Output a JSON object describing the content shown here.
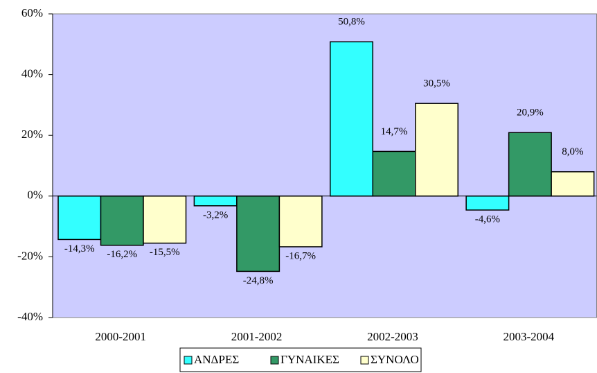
{
  "chart_data": {
    "type": "bar",
    "categories": [
      "2000-2001",
      "2001-2002",
      "2002-2003",
      "2003-2004"
    ],
    "series": [
      {
        "name": "ΑΝΔΡΕΣ",
        "color": "#33ffff",
        "values": [
          -14.3,
          -3.2,
          50.8,
          -4.6
        ],
        "value_labels": [
          "-14,3%",
          "-3,2%",
          "50,8%",
          "-4,6%"
        ]
      },
      {
        "name": "ΓΥΝΑΙΚΕΣ",
        "color": "#339966",
        "values": [
          -16.2,
          -24.8,
          14.7,
          20.9
        ],
        "value_labels": [
          "-16,2%",
          "-24,8%",
          "14,7%",
          "20,9%"
        ]
      },
      {
        "name": "ΣΥΝΟΛΟ",
        "color": "#ffffcc",
        "values": [
          -15.5,
          -16.7,
          30.5,
          8.0
        ],
        "value_labels": [
          "-15,5%",
          "-16,7%",
          "30,5%",
          "8,0%"
        ]
      }
    ],
    "ylim": [
      -40,
      60
    ],
    "yticks": [
      {
        "value": -40,
        "label": "-40%"
      },
      {
        "value": -20,
        "label": "-20%"
      },
      {
        "value": 0,
        "label": "0%"
      },
      {
        "value": 20,
        "label": "20%"
      },
      {
        "value": 40,
        "label": "40%"
      },
      {
        "value": 60,
        "label": "60%"
      }
    ],
    "plot_background": "#ccccff",
    "legend": "bottom"
  }
}
